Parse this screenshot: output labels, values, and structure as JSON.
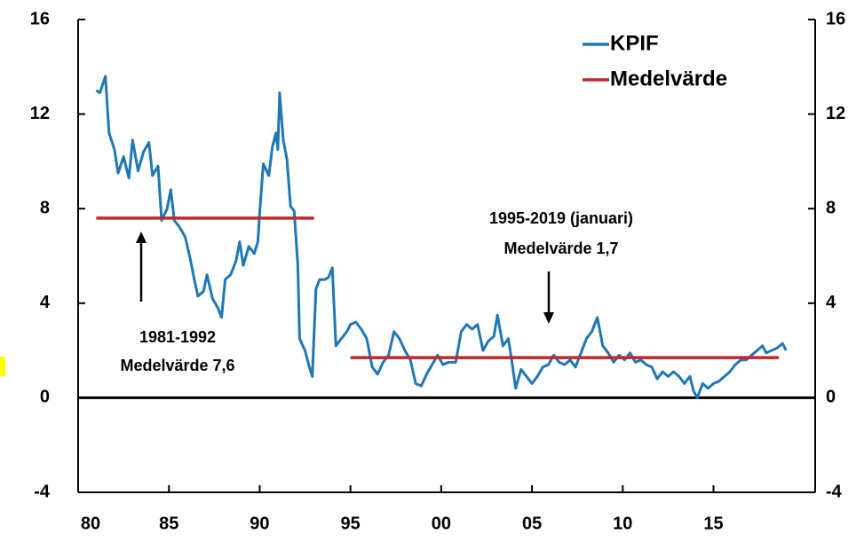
{
  "chart_data": {
    "type": "line",
    "series": [
      {
        "name": "KPIF",
        "color": "#1f77b4",
        "x": [
          1981.0,
          1981.2,
          1981.5,
          1981.7,
          1982.0,
          1982.2,
          1982.5,
          1982.8,
          1983.0,
          1983.3,
          1983.6,
          1983.9,
          1984.1,
          1984.4,
          1984.6,
          1984.9,
          1985.1,
          1985.3,
          1985.6,
          1985.9,
          1986.2,
          1986.4,
          1986.6,
          1986.9,
          1987.1,
          1987.4,
          1987.7,
          1987.9,
          1988.1,
          1988.4,
          1988.7,
          1988.9,
          1989.1,
          1989.4,
          1989.7,
          1989.9,
          1990.0,
          1990.2,
          1990.5,
          1990.7,
          1990.9,
          1991.0,
          1991.1,
          1991.3,
          1991.5,
          1991.7,
          1991.9,
          1992.1,
          1992.2,
          1992.5,
          1992.7,
          1992.9,
          1993.1,
          1993.3,
          1993.6,
          1993.8,
          1994.0,
          1994.2,
          1994.5,
          1994.8,
          1995.0,
          1995.3,
          1995.6,
          1995.9,
          1996.2,
          1996.5,
          1996.8,
          1997.1,
          1997.4,
          1997.7,
          1998.0,
          1998.3,
          1998.6,
          1998.9,
          1999.2,
          1999.5,
          1999.8,
          2000.1,
          2000.4,
          2000.8,
          2001.1,
          2001.4,
          2001.7,
          2002.0,
          2002.3,
          2002.6,
          2002.9,
          2003.1,
          2003.4,
          2003.7,
          2003.9,
          2004.1,
          2004.4,
          2004.7,
          2005.0,
          2005.3,
          2005.6,
          2005.9,
          2006.2,
          2006.5,
          2006.8,
          2007.1,
          2007.4,
          2007.7,
          2008.0,
          2008.3,
          2008.6,
          2008.9,
          2009.2,
          2009.5,
          2009.8,
          2010.1,
          2010.4,
          2010.7,
          2011.0,
          2011.3,
          2011.6,
          2011.9,
          2012.2,
          2012.5,
          2012.8,
          2013.1,
          2013.4,
          2013.7,
          2013.9,
          2014.1,
          2014.4,
          2014.7,
          2015.0,
          2015.3,
          2015.6,
          2015.9,
          2016.2,
          2016.5,
          2016.8,
          2017.1,
          2017.4,
          2017.7,
          2017.9,
          2018.2,
          2018.5,
          2018.8,
          2019.0
        ],
        "values": [
          13.0,
          12.9,
          13.6,
          11.2,
          10.5,
          9.5,
          10.2,
          9.3,
          10.9,
          9.6,
          10.4,
          10.8,
          9.4,
          9.8,
          7.5,
          8.0,
          8.8,
          7.5,
          7.2,
          6.8,
          5.8,
          5.0,
          4.3,
          4.5,
          5.2,
          4.2,
          3.8,
          3.4,
          5.0,
          5.2,
          5.8,
          6.6,
          5.6,
          6.4,
          6.1,
          6.6,
          7.8,
          9.9,
          9.4,
          10.6,
          11.2,
          10.5,
          12.9,
          10.9,
          10.1,
          8.1,
          7.9,
          5.6,
          2.5,
          2.0,
          1.4,
          0.9,
          4.6,
          5.0,
          5.0,
          5.1,
          5.5,
          2.2,
          2.5,
          2.8,
          3.1,
          3.2,
          2.9,
          2.5,
          1.3,
          1.0,
          1.5,
          1.8,
          2.8,
          2.5,
          2.0,
          1.6,
          0.6,
          0.5,
          1.0,
          1.4,
          1.8,
          1.4,
          1.5,
          1.5,
          2.8,
          3.1,
          2.9,
          3.1,
          2.0,
          2.4,
          2.6,
          3.5,
          2.2,
          2.5,
          1.5,
          0.4,
          1.2,
          0.9,
          0.6,
          0.9,
          1.3,
          1.4,
          1.8,
          1.5,
          1.4,
          1.6,
          1.3,
          1.9,
          2.5,
          2.8,
          3.4,
          2.2,
          1.9,
          1.5,
          1.8,
          1.6,
          1.9,
          1.5,
          1.6,
          1.4,
          1.3,
          0.8,
          1.1,
          0.9,
          1.1,
          0.9,
          0.6,
          0.9,
          0.3,
          0.0,
          0.6,
          0.4,
          0.6,
          0.7,
          0.9,
          1.1,
          1.4,
          1.6,
          1.6,
          1.8,
          2.0,
          2.2,
          1.9,
          2.0,
          2.1,
          2.3,
          2.0
        ]
      },
      {
        "name": "Medelvärde",
        "color": "#c0282d",
        "x": [
          1981.0,
          1993.0,
          1994.0,
          1995.0,
          2018.6
        ],
        "values": [
          7.6,
          7.6,
          null,
          1.7,
          1.7
        ]
      }
    ],
    "xlim": [
      1980,
      2020.6
    ],
    "xticks": [
      {
        "value": 1980,
        "label": "80"
      },
      {
        "value": 1985,
        "label": "85"
      },
      {
        "value": 1990,
        "label": "90"
      },
      {
        "value": 1995,
        "label": "95"
      },
      {
        "value": 2000,
        "label": "00"
      },
      {
        "value": 2005,
        "label": "05"
      },
      {
        "value": 2010,
        "label": "10"
      },
      {
        "value": 2015,
        "label": "15"
      }
    ],
    "ylim": [
      -4,
      16
    ],
    "yticks": [
      -4,
      0,
      4,
      8,
      12,
      16
    ],
    "y2lim": [
      -4,
      16
    ],
    "y2ticks": [
      -4,
      0,
      4,
      8,
      12,
      16
    ],
    "legend": "top-right",
    "annotations": [
      "1981-1992",
      "Medelvärde 7,6",
      "1995-2019 (januari)",
      "Medelvärde 1,7"
    ]
  }
}
